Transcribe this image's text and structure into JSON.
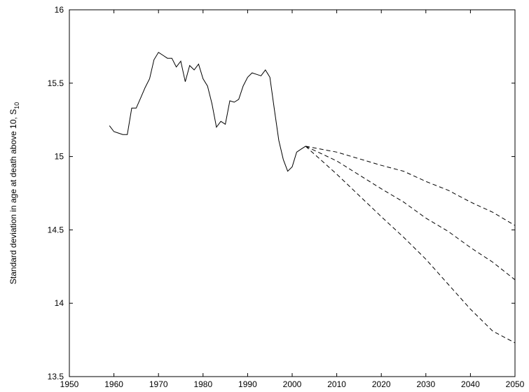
{
  "chart_data": {
    "type": "line",
    "title": "",
    "xlabel": "",
    "ylabel": "Standard deviation in age at death above 10, S",
    "ylabel_subscript": "10",
    "xlim": [
      1950,
      2050
    ],
    "ylim": [
      13.5,
      16
    ],
    "xticks": [
      "1950",
      "1960",
      "1970",
      "1980",
      "1990",
      "2000",
      "2010",
      "2020",
      "2030",
      "2040",
      "2050"
    ],
    "yticks": [
      "13.5",
      "14",
      "14.5",
      "15",
      "15.5",
      "16"
    ],
    "grid": false,
    "legend": "none",
    "series": [
      {
        "style": "solid",
        "x": [
          1959,
          1960,
          1961,
          1962,
          1963,
          1964,
          1965,
          1966,
          1967,
          1968,
          1969,
          1970,
          1971,
          1972,
          1973,
          1974,
          1975,
          1976,
          1977,
          1978,
          1979,
          1980,
          1981,
          1982,
          1983,
          1984,
          1985,
          1986,
          1987,
          1988,
          1989,
          1990,
          1991,
          1992,
          1993,
          1994,
          1995,
          1996,
          1997,
          1998,
          1999,
          2000,
          2001,
          2002,
          2003
        ],
        "y": [
          15.21,
          15.17,
          15.16,
          15.15,
          15.15,
          15.33,
          15.33,
          15.4,
          15.47,
          15.53,
          15.66,
          15.71,
          15.69,
          15.67,
          15.67,
          15.61,
          15.65,
          15.51,
          15.62,
          15.59,
          15.63,
          15.53,
          15.48,
          15.36,
          15.2,
          15.24,
          15.22,
          15.38,
          15.37,
          15.39,
          15.48,
          15.54,
          15.57,
          15.56,
          15.55,
          15.59,
          15.54,
          15.32,
          15.11,
          14.98,
          14.9,
          14.93,
          15.03,
          15.05,
          15.07
        ]
      },
      {
        "style": "dashed",
        "x": [
          2003,
          2010,
          2020,
          2025,
          2030,
          2035,
          2040,
          2045,
          2050
        ],
        "y": [
          15.07,
          15.03,
          14.94,
          14.9,
          14.83,
          14.77,
          14.69,
          14.62,
          14.53
        ]
      },
      {
        "style": "dashed",
        "x": [
          2003,
          2010,
          2020,
          2025,
          2030,
          2035,
          2040,
          2045,
          2050
        ],
        "y": [
          15.07,
          14.97,
          14.78,
          14.69,
          14.58,
          14.49,
          14.38,
          14.28,
          14.16
        ]
      },
      {
        "style": "dashed",
        "x": [
          2003,
          2010,
          2020,
          2025,
          2030,
          2035,
          2040,
          2045,
          2050
        ],
        "y": [
          15.07,
          14.88,
          14.59,
          14.45,
          14.3,
          14.13,
          13.96,
          13.81,
          13.73
        ]
      }
    ]
  }
}
